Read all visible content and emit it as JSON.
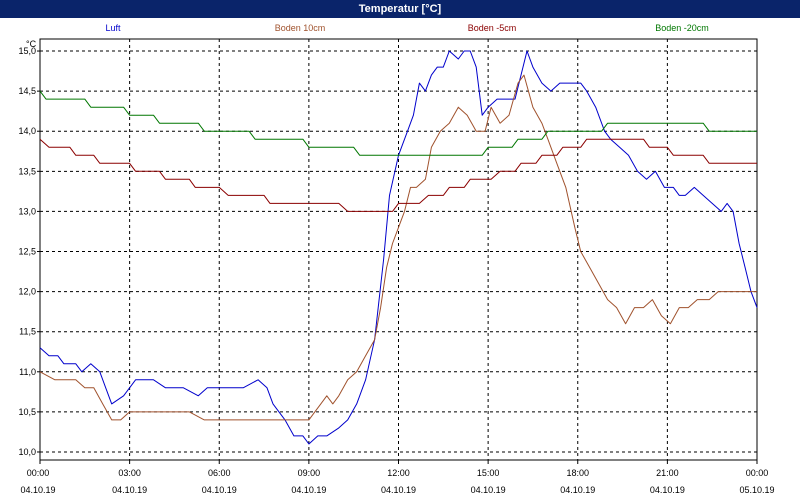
{
  "window": {
    "title": "Temperatur [°C]"
  },
  "chart_data": {
    "type": "line",
    "title": "Temperatur [°C]",
    "ylabel": "°C",
    "xlabel": "",
    "ylim": [
      9.9,
      15.15
    ],
    "xlim": [
      0,
      24
    ],
    "grid": true,
    "legend_placement": "top",
    "y_ticks": [
      "15,0",
      "14,5",
      "14,0",
      "13,5",
      "13,0",
      "12,5",
      "12,0",
      "11,5",
      "11,0",
      "10,5",
      "10,0"
    ],
    "y_tick_values": [
      15.0,
      14.5,
      14.0,
      13.5,
      13.0,
      12.5,
      12.0,
      11.5,
      11.0,
      10.5,
      10.0
    ],
    "x_ticks": [
      {
        "time": "00:00",
        "date": "04.10.19",
        "hour": 0
      },
      {
        "time": "03:00",
        "date": "04.10.19",
        "hour": 3
      },
      {
        "time": "06:00",
        "date": "04.10.19",
        "hour": 6
      },
      {
        "time": "09:00",
        "date": "04.10.19",
        "hour": 9
      },
      {
        "time": "12:00",
        "date": "04.10.19",
        "hour": 12
      },
      {
        "time": "15:00",
        "date": "04.10.19",
        "hour": 15
      },
      {
        "time": "18:00",
        "date": "04.10.19",
        "hour": 18
      },
      {
        "time": "21:00",
        "date": "04.10.19",
        "hour": 21
      },
      {
        "time": "00:00",
        "date": "05.10.19",
        "hour": 24
      }
    ],
    "series": [
      {
        "name": "Luft",
        "color": "#0000cc",
        "points": [
          [
            0,
            11.3
          ],
          [
            0.3,
            11.2
          ],
          [
            0.6,
            11.2
          ],
          [
            0.8,
            11.1
          ],
          [
            1.2,
            11.1
          ],
          [
            1.4,
            11.0
          ],
          [
            1.7,
            11.1
          ],
          [
            2.0,
            11.0
          ],
          [
            2.2,
            10.8
          ],
          [
            2.4,
            10.6
          ],
          [
            2.8,
            10.7
          ],
          [
            3.0,
            10.8
          ],
          [
            3.2,
            10.9
          ],
          [
            3.8,
            10.9
          ],
          [
            4.2,
            10.8
          ],
          [
            4.8,
            10.8
          ],
          [
            5.3,
            10.7
          ],
          [
            5.6,
            10.8
          ],
          [
            5.9,
            10.8
          ],
          [
            6.1,
            10.8
          ],
          [
            6.4,
            10.8
          ],
          [
            6.8,
            10.8
          ],
          [
            7.3,
            10.9
          ],
          [
            7.6,
            10.8
          ],
          [
            7.8,
            10.6
          ],
          [
            8.2,
            10.4
          ],
          [
            8.5,
            10.2
          ],
          [
            8.8,
            10.2
          ],
          [
            9.0,
            10.1
          ],
          [
            9.3,
            10.2
          ],
          [
            9.6,
            10.2
          ],
          [
            10.0,
            10.3
          ],
          [
            10.3,
            10.4
          ],
          [
            10.6,
            10.6
          ],
          [
            10.9,
            10.9
          ],
          [
            11.2,
            11.4
          ],
          [
            11.5,
            12.4
          ],
          [
            11.7,
            13.2
          ],
          [
            12.0,
            13.7
          ],
          [
            12.3,
            14.0
          ],
          [
            12.5,
            14.2
          ],
          [
            12.7,
            14.6
          ],
          [
            12.9,
            14.5
          ],
          [
            13.1,
            14.7
          ],
          [
            13.3,
            14.8
          ],
          [
            13.5,
            14.8
          ],
          [
            13.7,
            15.0
          ],
          [
            14.0,
            14.9
          ],
          [
            14.2,
            15.0
          ],
          [
            14.4,
            15.0
          ],
          [
            14.6,
            14.8
          ],
          [
            14.8,
            14.2
          ],
          [
            15.0,
            14.3
          ],
          [
            15.3,
            14.4
          ],
          [
            15.6,
            14.4
          ],
          [
            15.9,
            14.4
          ],
          [
            16.1,
            14.7
          ],
          [
            16.3,
            15.0
          ],
          [
            16.5,
            14.8
          ],
          [
            16.8,
            14.6
          ],
          [
            17.1,
            14.5
          ],
          [
            17.4,
            14.6
          ],
          [
            17.8,
            14.6
          ],
          [
            18.1,
            14.6
          ],
          [
            18.3,
            14.5
          ],
          [
            18.6,
            14.3
          ],
          [
            18.9,
            14.0
          ],
          [
            19.1,
            13.9
          ],
          [
            19.4,
            13.8
          ],
          [
            19.7,
            13.7
          ],
          [
            20.0,
            13.5
          ],
          [
            20.3,
            13.4
          ],
          [
            20.6,
            13.5
          ],
          [
            20.9,
            13.3
          ],
          [
            21.2,
            13.3
          ],
          [
            21.4,
            13.2
          ],
          [
            21.6,
            13.2
          ],
          [
            21.9,
            13.3
          ],
          [
            22.2,
            13.2
          ],
          [
            22.5,
            13.1
          ],
          [
            22.8,
            13.0
          ],
          [
            23.0,
            13.1
          ],
          [
            23.2,
            13.0
          ],
          [
            23.4,
            12.6
          ],
          [
            23.6,
            12.3
          ],
          [
            23.8,
            12.0
          ],
          [
            24.0,
            11.8
          ]
        ]
      },
      {
        "name": "Boden 10cm",
        "color": "#a0522d",
        "points": [
          [
            0,
            11.0
          ],
          [
            0.5,
            10.9
          ],
          [
            0.9,
            10.9
          ],
          [
            1.2,
            10.9
          ],
          [
            1.5,
            10.8
          ],
          [
            1.8,
            10.8
          ],
          [
            2.1,
            10.6
          ],
          [
            2.4,
            10.4
          ],
          [
            2.7,
            10.4
          ],
          [
            3.0,
            10.5
          ],
          [
            3.5,
            10.5
          ],
          [
            4.0,
            10.5
          ],
          [
            4.5,
            10.5
          ],
          [
            5.0,
            10.5
          ],
          [
            5.5,
            10.4
          ],
          [
            6.0,
            10.4
          ],
          [
            6.5,
            10.4
          ],
          [
            7.0,
            10.4
          ],
          [
            7.5,
            10.4
          ],
          [
            8.0,
            10.4
          ],
          [
            8.5,
            10.4
          ],
          [
            9.0,
            10.4
          ],
          [
            9.2,
            10.5
          ],
          [
            9.4,
            10.6
          ],
          [
            9.6,
            10.7
          ],
          [
            9.8,
            10.6
          ],
          [
            10.0,
            10.7
          ],
          [
            10.3,
            10.9
          ],
          [
            10.6,
            11.0
          ],
          [
            10.9,
            11.2
          ],
          [
            11.2,
            11.4
          ],
          [
            11.4,
            11.8
          ],
          [
            11.6,
            12.3
          ],
          [
            11.8,
            12.6
          ],
          [
            12.0,
            12.8
          ],
          [
            12.2,
            13.0
          ],
          [
            12.4,
            13.3
          ],
          [
            12.6,
            13.3
          ],
          [
            12.9,
            13.4
          ],
          [
            13.1,
            13.8
          ],
          [
            13.4,
            14.0
          ],
          [
            13.7,
            14.1
          ],
          [
            14.0,
            14.3
          ],
          [
            14.3,
            14.2
          ],
          [
            14.6,
            14.0
          ],
          [
            14.9,
            14.0
          ],
          [
            15.1,
            14.3
          ],
          [
            15.4,
            14.1
          ],
          [
            15.7,
            14.2
          ],
          [
            16.0,
            14.6
          ],
          [
            16.2,
            14.7
          ],
          [
            16.5,
            14.3
          ],
          [
            16.8,
            14.1
          ],
          [
            17.0,
            13.9
          ],
          [
            17.3,
            13.6
          ],
          [
            17.6,
            13.3
          ],
          [
            17.9,
            12.8
          ],
          [
            18.1,
            12.5
          ],
          [
            18.4,
            12.3
          ],
          [
            18.7,
            12.1
          ],
          [
            19.0,
            11.9
          ],
          [
            19.3,
            11.8
          ],
          [
            19.6,
            11.6
          ],
          [
            19.9,
            11.8
          ],
          [
            20.2,
            11.8
          ],
          [
            20.5,
            11.9
          ],
          [
            20.8,
            11.7
          ],
          [
            21.1,
            11.6
          ],
          [
            21.4,
            11.8
          ],
          [
            21.7,
            11.8
          ],
          [
            22.0,
            11.9
          ],
          [
            22.4,
            11.9
          ],
          [
            22.7,
            12.0
          ],
          [
            23.0,
            12.0
          ],
          [
            23.5,
            12.0
          ],
          [
            24.0,
            12.0
          ]
        ]
      },
      {
        "name": "Boden -5cm",
        "color": "#8b0000",
        "points": [
          [
            0,
            13.9
          ],
          [
            0.3,
            13.8
          ],
          [
            1.0,
            13.8
          ],
          [
            1.2,
            13.7
          ],
          [
            1.8,
            13.7
          ],
          [
            2.0,
            13.6
          ],
          [
            3.0,
            13.6
          ],
          [
            3.2,
            13.5
          ],
          [
            4.0,
            13.5
          ],
          [
            4.2,
            13.4
          ],
          [
            5.0,
            13.4
          ],
          [
            5.2,
            13.3
          ],
          [
            6.0,
            13.3
          ],
          [
            6.3,
            13.2
          ],
          [
            7.5,
            13.2
          ],
          [
            7.7,
            13.1
          ],
          [
            10.0,
            13.1
          ],
          [
            10.3,
            13.0
          ],
          [
            11.8,
            13.0
          ],
          [
            12.0,
            13.1
          ],
          [
            12.7,
            13.1
          ],
          [
            13.0,
            13.2
          ],
          [
            13.5,
            13.2
          ],
          [
            13.7,
            13.3
          ],
          [
            14.2,
            13.3
          ],
          [
            14.4,
            13.4
          ],
          [
            15.1,
            13.4
          ],
          [
            15.4,
            13.5
          ],
          [
            15.9,
            13.5
          ],
          [
            16.1,
            13.6
          ],
          [
            16.6,
            13.6
          ],
          [
            16.8,
            13.7
          ],
          [
            17.3,
            13.7
          ],
          [
            17.5,
            13.8
          ],
          [
            18.1,
            13.8
          ],
          [
            18.3,
            13.9
          ],
          [
            20.2,
            13.9
          ],
          [
            20.4,
            13.8
          ],
          [
            21.0,
            13.8
          ],
          [
            21.2,
            13.7
          ],
          [
            22.2,
            13.7
          ],
          [
            22.4,
            13.6
          ],
          [
            24.0,
            13.6
          ]
        ]
      },
      {
        "name": "Boden -20cm",
        "color": "#007700",
        "points": [
          [
            0,
            14.5
          ],
          [
            0.2,
            14.4
          ],
          [
            1.5,
            14.4
          ],
          [
            1.7,
            14.3
          ],
          [
            2.8,
            14.3
          ],
          [
            3.0,
            14.2
          ],
          [
            3.8,
            14.2
          ],
          [
            4.0,
            14.1
          ],
          [
            5.3,
            14.1
          ],
          [
            5.5,
            14.0
          ],
          [
            7.0,
            14.0
          ],
          [
            7.2,
            13.9
          ],
          [
            8.8,
            13.9
          ],
          [
            9.0,
            13.8
          ],
          [
            10.5,
            13.8
          ],
          [
            10.7,
            13.7
          ],
          [
            14.8,
            13.7
          ],
          [
            15.0,
            13.8
          ],
          [
            15.8,
            13.8
          ],
          [
            16.0,
            13.9
          ],
          [
            16.8,
            13.9
          ],
          [
            17.0,
            14.0
          ],
          [
            18.8,
            14.0
          ],
          [
            19.0,
            14.1
          ],
          [
            22.2,
            14.1
          ],
          [
            22.4,
            14.0
          ],
          [
            24.0,
            14.0
          ]
        ]
      }
    ]
  }
}
